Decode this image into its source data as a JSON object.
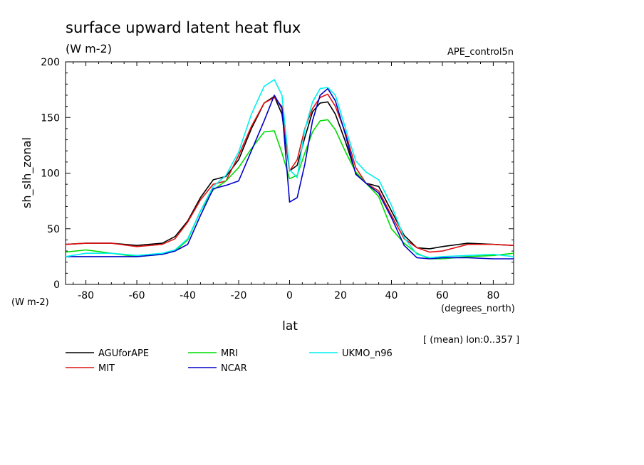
{
  "chart_data": {
    "type": "line",
    "title": "surface upward latent heat flux",
    "subtitle": "(W m-2)",
    "dataset_label": "APE_control5n",
    "xlabel": "lat",
    "xunits": "(degrees_north)",
    "ylabel": "sh_slh_zonal",
    "yunits": "(W m-2)",
    "note": "[ (mean) lon:0..357 ]",
    "xlim": [
      -88,
      88
    ],
    "ylim": [
      0,
      200
    ],
    "xticks": [
      -80,
      -60,
      -40,
      -20,
      0,
      20,
      40,
      60,
      80
    ],
    "yticks": [
      0,
      50,
      100,
      150,
      200
    ],
    "grid": false,
    "legend_position": "bottom",
    "x": [
      -88,
      -80,
      -70,
      -60,
      -50,
      -45,
      -40,
      -35,
      -30,
      -25,
      -20,
      -15,
      -10,
      -6,
      -3,
      0,
      3,
      6,
      9,
      12,
      15,
      18,
      22,
      26,
      30,
      35,
      40,
      45,
      50,
      55,
      60,
      70,
      80,
      88
    ],
    "series": [
      {
        "name": "AGUforAPE",
        "color": "#000000",
        "values": [
          36,
          37,
          37,
          35,
          37,
          43,
          57,
          78,
          94,
          97,
          112,
          140,
          163,
          169,
          153,
          102,
          107,
          132,
          155,
          163,
          164,
          153,
          128,
          100,
          91,
          88,
          66,
          44,
          33,
          32,
          34,
          37,
          36,
          35
        ]
      },
      {
        "name": "MIT",
        "color": "#e01010",
        "values": [
          36,
          37,
          37,
          34,
          36,
          41,
          56,
          76,
          90,
          93,
          116,
          142,
          163,
          168,
          160,
          102,
          112,
          140,
          158,
          168,
          171,
          160,
          136,
          105,
          91,
          84,
          62,
          41,
          33,
          29,
          30,
          36,
          36,
          35
        ]
      },
      {
        "name": "MRI",
        "color": "#00dd00",
        "values": [
          29,
          31,
          28,
          25,
          27,
          30,
          40,
          66,
          85,
          93,
          105,
          122,
          137,
          138,
          118,
          95,
          98,
          118,
          137,
          147,
          148,
          139,
          119,
          101,
          91,
          79,
          50,
          37,
          28,
          23,
          23,
          25,
          26,
          28
        ]
      },
      {
        "name": "NCAR",
        "color": "#0000c8",
        "values": [
          25,
          25,
          25,
          25,
          27,
          30,
          36,
          62,
          86,
          89,
          93,
          120,
          147,
          170,
          158,
          74,
          78,
          108,
          147,
          170,
          176,
          165,
          134,
          99,
          91,
          82,
          60,
          35,
          24,
          23,
          24,
          24,
          23,
          23
        ]
      },
      {
        "name": "UKMO_n96",
        "color": "#00f0f0",
        "values": [
          25,
          28,
          28,
          26,
          28,
          31,
          41,
          66,
          88,
          98,
          119,
          153,
          178,
          184,
          170,
          103,
          96,
          139,
          164,
          176,
          177,
          170,
          140,
          111,
          101,
          94,
          71,
          42,
          27,
          24,
          25,
          26,
          27,
          25
        ]
      }
    ]
  }
}
